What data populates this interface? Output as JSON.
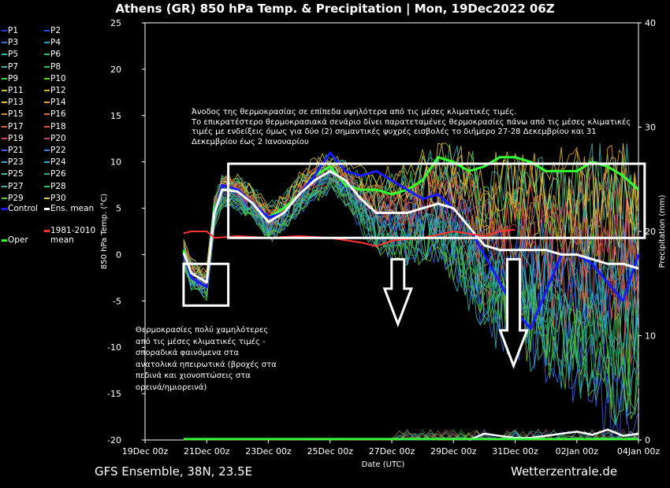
{
  "title": "Athens  (GR)  850 hPa Temp. & Precipitation | Mon, 19Dec2022 06Z",
  "footer": {
    "left": "GFS Ensemble, 38N, 23.5E",
    "right": "Wetterzentrale.de"
  },
  "annotations": {
    "top": [
      "Άνοδος της θερμοκρασίας σε επίπεδα υψηλότερα από τις μέσες κλιματικές τιμές.",
      "Το επικρατέστερο θερμοκρασιακά σενάριο δίνει παρατεταμένες θερμοκρασίες πάνω από τις μέσες κλιματικές",
      "τιμές με ενδείξεις όμως για δύο (2) σημαντικές ψυχρές εισβολές το διήμερο 27-28 Δεκεμβρίου και 31",
      "Δεκεμβρίου έως 2 Ιανουαρίου"
    ],
    "bottom": [
      "Θερμοκρασίες πολύ χαμηλότερες",
      "από τις μέσες κλιματικές τιμές -",
      "σποραδικά φαινόμενα στα",
      "ανατολικά ηπειρωτικά (βροχές στα",
      "πεδινά και χιονοπτώσεις στα",
      "ορεινά/ημιορεινά)"
    ]
  },
  "legend": {
    "members": [
      {
        "label": "P1",
        "color": "#1f3fd0"
      },
      {
        "label": "P2",
        "color": "#2050e0"
      },
      {
        "label": "P3",
        "color": "#3a6ad8"
      },
      {
        "label": "P4",
        "color": "#2ea0c8"
      },
      {
        "label": "P5",
        "color": "#28b8b0"
      },
      {
        "label": "P6",
        "color": "#30c070"
      },
      {
        "label": "P7",
        "color": "#38b0c0"
      },
      {
        "label": "P8",
        "color": "#30c060"
      },
      {
        "label": "P9",
        "color": "#40d040"
      },
      {
        "label": "P10",
        "color": "#60d030"
      },
      {
        "label": "P11",
        "color": "#d0c030"
      },
      {
        "label": "P12",
        "color": "#c8b020"
      },
      {
        "label": "P13",
        "color": "#e0c040"
      },
      {
        "label": "P14",
        "color": "#e0a030"
      },
      {
        "label": "P15",
        "color": "#d09040"
      },
      {
        "label": "P16",
        "color": "#d07040"
      },
      {
        "label": "P17",
        "color": "#e06040"
      },
      {
        "label": "P18",
        "color": "#e05050"
      },
      {
        "label": "P19",
        "color": "#d04060"
      },
      {
        "label": "P20",
        "color": "#c04070"
      },
      {
        "label": "P21",
        "color": "#4060e0"
      },
      {
        "label": "P22",
        "color": "#4080e0"
      },
      {
        "label": "P23",
        "color": "#40a0d0"
      },
      {
        "label": "P24",
        "color": "#30b0c0"
      },
      {
        "label": "P25",
        "color": "#40c0a0"
      },
      {
        "label": "P26",
        "color": "#30b090"
      },
      {
        "label": "P27",
        "color": "#40b0b0"
      },
      {
        "label": "P28",
        "color": "#40c060"
      },
      {
        "label": "P29",
        "color": "#60c040"
      },
      {
        "label": "P30",
        "color": "#e0d060"
      }
    ],
    "control": {
      "label": "Control",
      "color": "#1a1aff"
    },
    "ens_mean": {
      "label": "Ens. mean",
      "color": "#ffffff"
    },
    "oper": {
      "label": "Oper",
      "color": "#33ff33"
    },
    "climate": {
      "label_lines": [
        "1981-2010",
        "mean"
      ],
      "color": "#ff3333"
    }
  },
  "chart_data": {
    "type": "line",
    "xlabel": "Date (UTC)",
    "ylabel": "850 hPa Temp. (°C)",
    "y2label": "Precipitation (mm)",
    "ylim": [
      -20,
      25
    ],
    "y2lim": [
      0,
      40
    ],
    "yticks": [
      -20,
      -15,
      -10,
      -5,
      0,
      5,
      10,
      15,
      20,
      25
    ],
    "y2ticks": [
      0,
      10,
      20,
      30,
      40
    ],
    "xlim": [
      0,
      16
    ],
    "xticks": [
      {
        "x": 0,
        "label": "19Dec 00z"
      },
      {
        "x": 2,
        "label": "21Dec 00z"
      },
      {
        "x": 4,
        "label": "23Dec 00z"
      },
      {
        "x": 6,
        "label": "25Dec 00z"
      },
      {
        "x": 8,
        "label": "27Dec 00z"
      },
      {
        "x": 10,
        "label": "29Dec 00z"
      },
      {
        "x": 12,
        "label": "31Dec 00z"
      },
      {
        "x": 14,
        "label": "02Jan 00z"
      },
      {
        "x": 16,
        "label": "04Jan 00z"
      }
    ],
    "series": [
      {
        "name": "Oper",
        "color": "#33ff33",
        "width": 3,
        "points": [
          [
            1.25,
            0.5
          ],
          [
            1.5,
            -2.5
          ],
          [
            1.75,
            -3
          ],
          [
            2.0,
            -3.5
          ],
          [
            2.25,
            5
          ],
          [
            2.5,
            7
          ],
          [
            3,
            7
          ],
          [
            3.5,
            5.5
          ],
          [
            4,
            4
          ],
          [
            4.5,
            5
          ],
          [
            5,
            6.5
          ],
          [
            5.5,
            8.5
          ],
          [
            6,
            9.5
          ],
          [
            6.5,
            7.5
          ],
          [
            7,
            7
          ],
          [
            7.5,
            7
          ],
          [
            8,
            6.5
          ],
          [
            8.5,
            7
          ],
          [
            9,
            8
          ],
          [
            9.5,
            10.5
          ],
          [
            10,
            10
          ],
          [
            10.5,
            9
          ],
          [
            11,
            9.5
          ],
          [
            11.5,
            10.5
          ],
          [
            12,
            10.5
          ],
          [
            12.5,
            10
          ],
          [
            13,
            9
          ],
          [
            13.5,
            9
          ],
          [
            14,
            9
          ],
          [
            14.5,
            10
          ],
          [
            15,
            9.5
          ],
          [
            15.5,
            8.5
          ],
          [
            16,
            7
          ]
        ]
      },
      {
        "name": "Control",
        "color": "#1a1aff",
        "width": 3,
        "points": [
          [
            1.25,
            0
          ],
          [
            1.5,
            -2.5
          ],
          [
            1.75,
            -3
          ],
          [
            2.0,
            -3.5
          ],
          [
            2.25,
            4.5
          ],
          [
            2.5,
            7.5
          ],
          [
            3,
            7
          ],
          [
            3.5,
            5.5
          ],
          [
            4,
            4
          ],
          [
            4.5,
            4.5
          ],
          [
            5,
            6.5
          ],
          [
            5.5,
            8.5
          ],
          [
            6,
            11
          ],
          [
            6.5,
            9
          ],
          [
            7,
            8.5
          ],
          [
            7.5,
            9
          ],
          [
            8,
            8
          ],
          [
            8.5,
            7
          ],
          [
            9,
            6
          ],
          [
            9.5,
            6.5
          ],
          [
            10,
            5
          ],
          [
            10.5,
            3
          ],
          [
            11,
            0
          ],
          [
            11.5,
            -3
          ],
          [
            12,
            -6
          ],
          [
            12.5,
            -8
          ],
          [
            13,
            -4
          ],
          [
            13.5,
            0
          ],
          [
            14,
            0
          ],
          [
            14.5,
            -1
          ],
          [
            15,
            -3
          ],
          [
            15.5,
            -5
          ],
          [
            16,
            0
          ]
        ]
      },
      {
        "name": "Ens. mean",
        "color": "#ffffff",
        "width": 3,
        "points": [
          [
            1.25,
            0.2
          ],
          [
            1.5,
            -2
          ],
          [
            1.75,
            -2.5
          ],
          [
            2.0,
            -3
          ],
          [
            2.25,
            4.5
          ],
          [
            2.5,
            7
          ],
          [
            3,
            6.8
          ],
          [
            3.5,
            5.5
          ],
          [
            4,
            3.5
          ],
          [
            4.5,
            4.5
          ],
          [
            5,
            6.5
          ],
          [
            5.5,
            8
          ],
          [
            6,
            9
          ],
          [
            6.5,
            8
          ],
          [
            7,
            6
          ],
          [
            7.5,
            4.5
          ],
          [
            8,
            4.5
          ],
          [
            8.5,
            4.5
          ],
          [
            9,
            5
          ],
          [
            9.5,
            5.5
          ],
          [
            10,
            5
          ],
          [
            10.5,
            3
          ],
          [
            11,
            1
          ],
          [
            11.5,
            0.5
          ],
          [
            12,
            0.5
          ],
          [
            12.5,
            0.5
          ],
          [
            13,
            0.5
          ],
          [
            13.5,
            0
          ],
          [
            14,
            0
          ],
          [
            14.5,
            -0.5
          ],
          [
            15,
            -1
          ],
          [
            15.5,
            -1
          ],
          [
            16,
            -1.5
          ]
        ]
      },
      {
        "name": "1981-2010 mean",
        "color": "#ff3333",
        "width": 2,
        "points": [
          [
            1.25,
            2.3
          ],
          [
            1.5,
            2.5
          ],
          [
            2,
            2.5
          ],
          [
            2.25,
            1.8
          ],
          [
            3,
            2
          ],
          [
            4,
            1.8
          ],
          [
            5,
            2
          ],
          [
            6,
            1.8
          ],
          [
            7,
            1.3
          ],
          [
            7.5,
            0.9
          ],
          [
            8,
            1.5
          ],
          [
            9,
            1.8
          ],
          [
            10,
            2.5
          ],
          [
            11,
            2
          ],
          [
            11.5,
            2.5
          ],
          [
            12,
            2.7
          ]
        ]
      }
    ],
    "precip_series": [
      {
        "name": "Ens. mean",
        "color": "#ffffff",
        "points": [
          [
            10.5,
            0
          ],
          [
            11,
            0.6
          ],
          [
            11.5,
            0.4
          ],
          [
            12,
            0.2
          ],
          [
            12.5,
            0.2
          ],
          [
            13,
            0.4
          ],
          [
            13.5,
            0.6
          ],
          [
            14,
            0.8
          ],
          [
            14.5,
            0.5
          ],
          [
            15,
            1
          ],
          [
            15.5,
            0.4
          ],
          [
            16,
            0.6
          ]
        ]
      }
    ],
    "highlight_boxes": [
      {
        "x0": 1.25,
        "x1": 2.7,
        "y0": -5.5,
        "y1": -1
      },
      {
        "x0": 2.7,
        "x1": 16.2,
        "y0": 1.8,
        "y1": 9.8
      }
    ],
    "arrows": [
      {
        "x": 8.2,
        "y_start": -0.5,
        "y_end": -7.5
      },
      {
        "x": 11.95,
        "y_start": -0.5,
        "y_end": -12
      }
    ]
  }
}
